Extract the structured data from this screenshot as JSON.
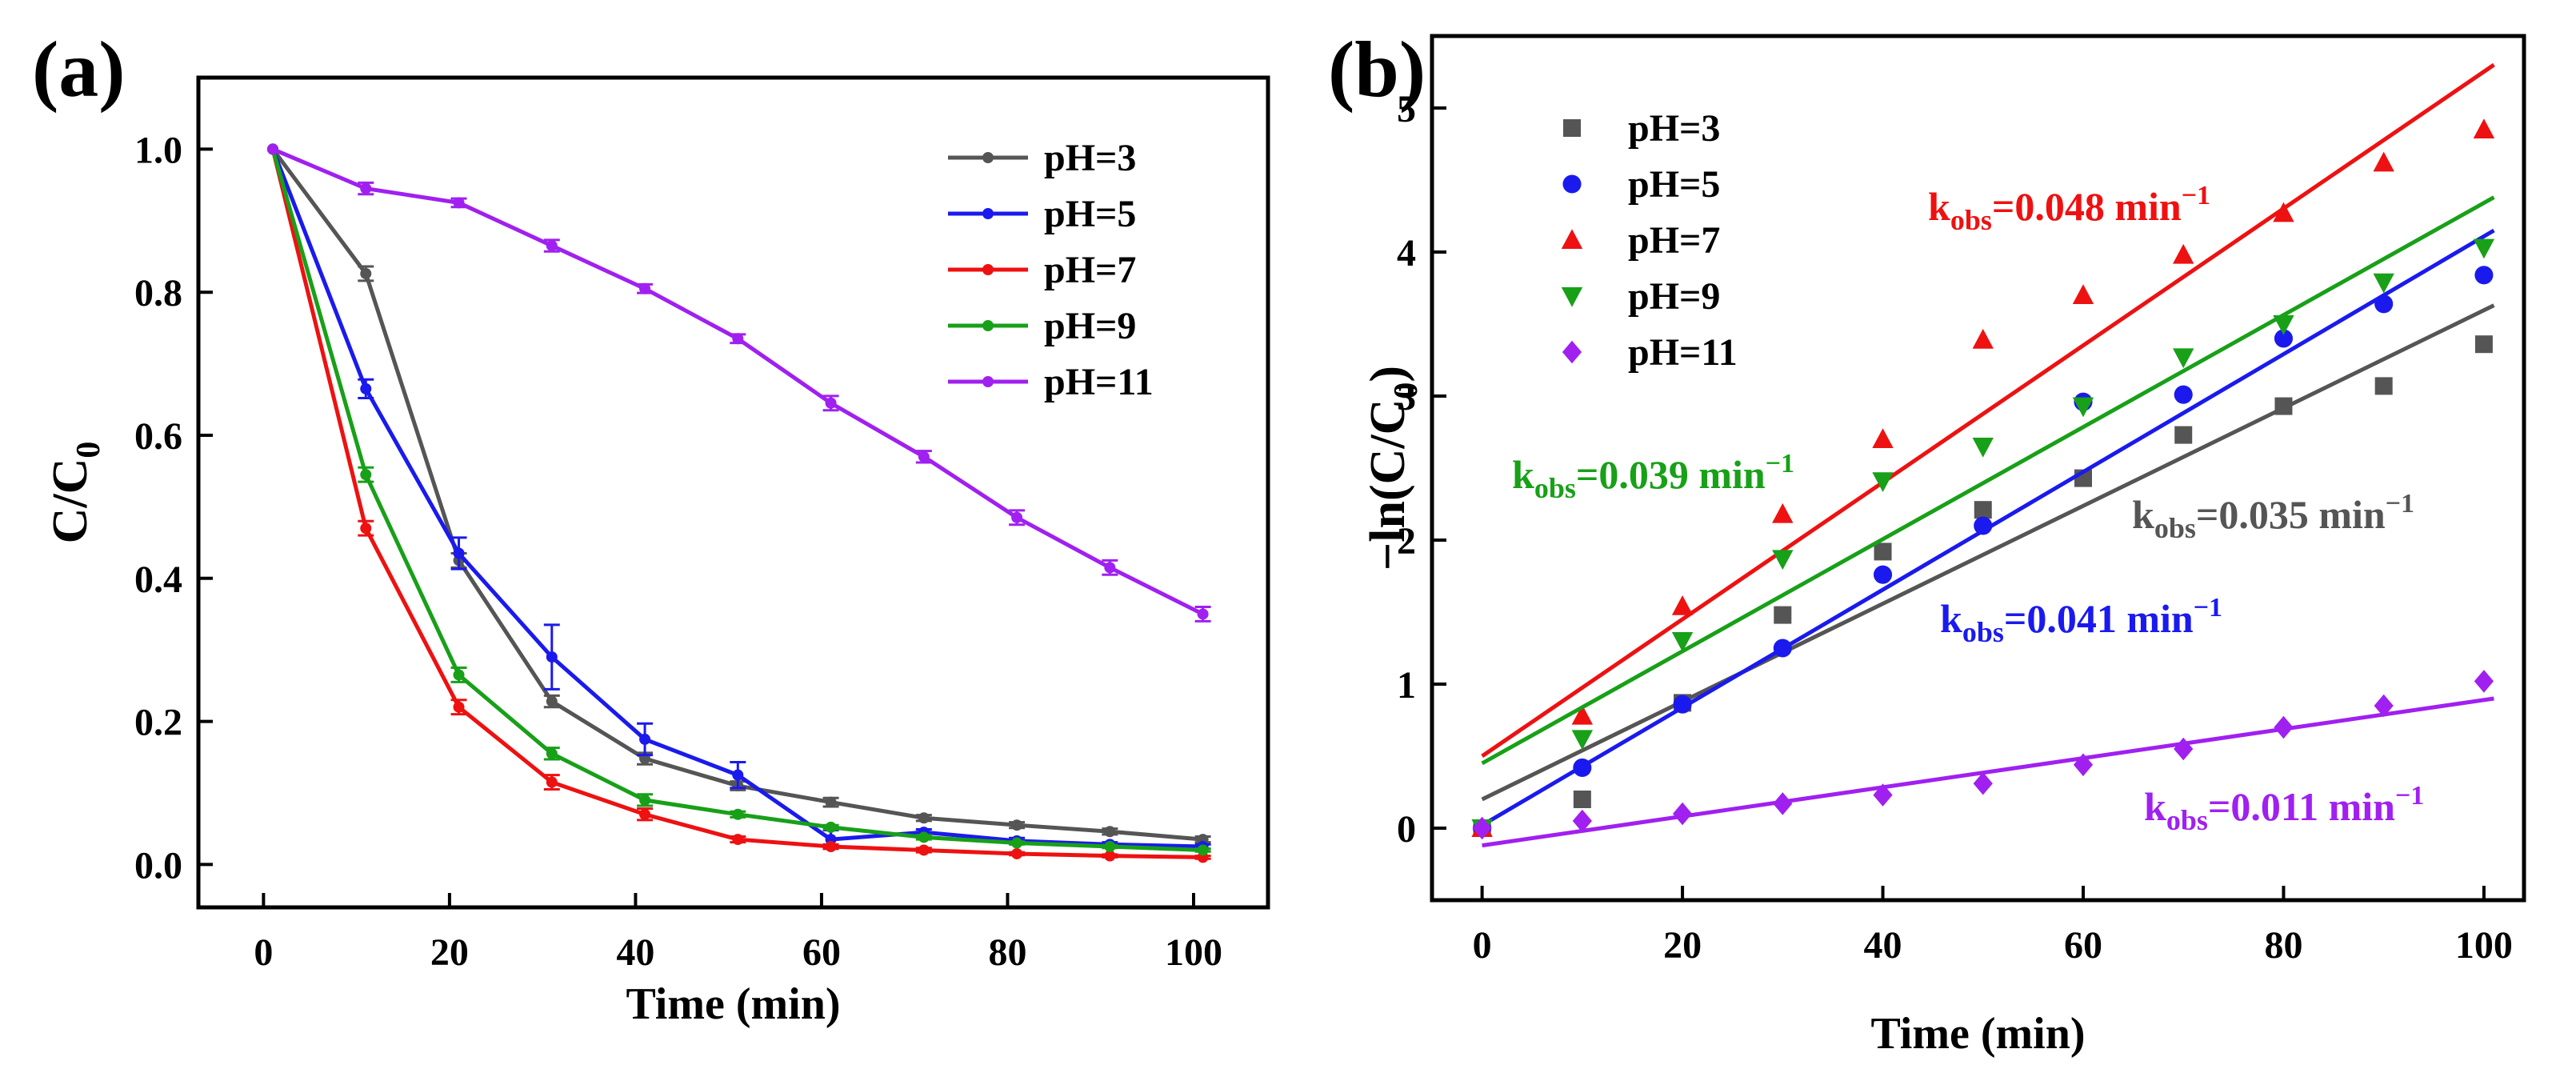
{
  "panels": {
    "a": {
      "label": "(a)"
    },
    "b": {
      "label": "(b)"
    }
  },
  "chart_data": [
    {
      "id": "a",
      "type": "line",
      "title": "",
      "xlabel": "Time (min)",
      "ylabel": "C/C",
      "ylabel_sub": "0",
      "xlim": [
        -7,
        108
      ],
      "ylim": [
        -0.06,
        1.1
      ],
      "xticks": [
        0,
        20,
        40,
        60,
        80,
        100
      ],
      "xtick_labels": [
        "0",
        "20",
        "40",
        "60",
        "80",
        "100"
      ],
      "yticks": [
        0.0,
        0.2,
        0.4,
        0.6,
        0.8,
        1.0
      ],
      "ytick_labels": [
        "0.0",
        "0.2",
        "0.4",
        "0.6",
        "0.8",
        "1.0"
      ],
      "legend_position": "top-right",
      "series": [
        {
          "name": "pH=3",
          "color": "#555555",
          "x": [
            1,
            11,
            21,
            31,
            41,
            51,
            61,
            71,
            81,
            91,
            101
          ],
          "values": [
            1.0,
            0.826,
            0.425,
            0.228,
            0.148,
            0.11,
            0.087,
            0.065,
            0.055,
            0.046,
            0.035
          ],
          "errors": [
            0,
            0.01,
            0.01,
            0.008,
            0.008,
            0.006,
            0.006,
            0.004,
            0.004,
            0.004,
            0.004
          ]
        },
        {
          "name": "pH=5",
          "color": "#1a1aee",
          "x": [
            1,
            11,
            21,
            31,
            41,
            51,
            61,
            71,
            81,
            91,
            101
          ],
          "values": [
            1.0,
            0.665,
            0.435,
            0.29,
            0.175,
            0.125,
            0.035,
            0.045,
            0.033,
            0.028,
            0.025
          ],
          "errors": [
            0,
            0.013,
            0.022,
            0.045,
            0.022,
            0.018,
            0.013,
            0.004,
            0.004,
            0.003,
            0.003
          ]
        },
        {
          "name": "pH=7",
          "color": "#ee1111",
          "x": [
            1,
            11,
            21,
            31,
            41,
            51,
            61,
            71,
            81,
            91,
            101
          ],
          "values": [
            1.0,
            0.47,
            0.22,
            0.115,
            0.07,
            0.035,
            0.025,
            0.02,
            0.015,
            0.012,
            0.01
          ],
          "errors": [
            0,
            0.01,
            0.01,
            0.01,
            0.008,
            0.004,
            0.003,
            0.003,
            0.002,
            0.002,
            0.002
          ]
        },
        {
          "name": "pH=9",
          "color": "#18a018",
          "x": [
            1,
            11,
            21,
            31,
            41,
            51,
            61,
            71,
            81,
            91,
            101
          ],
          "values": [
            1.0,
            0.545,
            0.265,
            0.155,
            0.09,
            0.07,
            0.052,
            0.038,
            0.03,
            0.025,
            0.02
          ],
          "errors": [
            0,
            0.01,
            0.01,
            0.008,
            0.008,
            0.004,
            0.003,
            0.003,
            0.002,
            0.002,
            0.002
          ]
        },
        {
          "name": "pH=11",
          "color": "#a020f0",
          "x": [
            1,
            11,
            21,
            31,
            41,
            51,
            61,
            71,
            81,
            91,
            101
          ],
          "values": [
            1.0,
            0.945,
            0.925,
            0.865,
            0.805,
            0.735,
            0.645,
            0.57,
            0.485,
            0.415,
            0.35
          ],
          "errors": [
            0,
            0.008,
            0.006,
            0.008,
            0.006,
            0.006,
            0.01,
            0.008,
            0.01,
            0.01,
            0.01
          ]
        }
      ]
    },
    {
      "id": "b",
      "type": "scatter",
      "title": "",
      "xlabel": "Time (min)",
      "ylabel": "−ln(C/C",
      "ylabel_sub": "0",
      "ylabel_end": ")",
      "xlim": [
        -5,
        104
      ],
      "ylim": [
        -0.5,
        5.5
      ],
      "xticks": [
        0,
        20,
        40,
        60,
        80,
        100
      ],
      "xtick_labels": [
        "0",
        "20",
        "40",
        "60",
        "80",
        "100"
      ],
      "yticks": [
        0,
        1,
        2,
        3,
        4,
        5
      ],
      "ytick_labels": [
        "0",
        "1",
        "2",
        "3",
        "4",
        "5"
      ],
      "legend_position": "top-left",
      "series": [
        {
          "name": "pH=3",
          "color": "#555555",
          "marker": "square",
          "x": [
            0,
            10,
            20,
            30,
            40,
            50,
            60,
            70,
            80,
            90,
            100
          ],
          "values": [
            0.0,
            0.2,
            0.87,
            1.48,
            1.92,
            2.21,
            2.43,
            2.73,
            2.93,
            3.07,
            3.36
          ],
          "fit": {
            "x": [
              0,
              101
            ],
            "y": [
              0.2,
              3.63
            ]
          },
          "k_label": {
            "k": "k",
            "sub": "obs",
            "value": "=0.035 min",
            "sup": "−1"
          }
        },
        {
          "name": "pH=5",
          "color": "#1a1aee",
          "marker": "circle",
          "x": [
            0,
            10,
            20,
            30,
            40,
            50,
            60,
            70,
            80,
            90,
            100
          ],
          "values": [
            0.0,
            0.42,
            0.86,
            1.25,
            1.76,
            2.1,
            2.96,
            3.01,
            3.4,
            3.64,
            3.84
          ],
          "fit": {
            "x": [
              0,
              101
            ],
            "y": [
              0.02,
              4.15
            ]
          },
          "k_label": {
            "k": "k",
            "sub": "obs",
            "value": "=0.041 min",
            "sup": "−1"
          }
        },
        {
          "name": "pH=7",
          "color": "#ee1111",
          "marker": "triangle-up",
          "x": [
            0,
            10,
            20,
            30,
            40,
            50,
            60,
            70,
            80,
            90,
            100
          ],
          "values": [
            0.0,
            0.78,
            1.54,
            2.18,
            2.7,
            3.39,
            3.7,
            3.98,
            4.27,
            4.62,
            4.85
          ],
          "fit": {
            "x": [
              0,
              101
            ],
            "y": [
              0.5,
              5.3
            ]
          },
          "k_label": {
            "k": "k",
            "sub": "obs",
            "value": "=0.048 min",
            "sup": "−1"
          }
        },
        {
          "name": "pH=9",
          "color": "#18a018",
          "marker": "triangle-down",
          "x": [
            0,
            10,
            20,
            30,
            40,
            50,
            60,
            70,
            80,
            90,
            100
          ],
          "values": [
            0.0,
            0.62,
            1.3,
            1.87,
            2.41,
            2.65,
            2.93,
            3.27,
            3.5,
            3.79,
            4.03
          ],
          "fit": {
            "x": [
              0,
              101
            ],
            "y": [
              0.45,
              4.38
            ]
          },
          "k_label": {
            "k": "k",
            "sub": "obs",
            "value": "=0.039 min",
            "sup": "−1"
          }
        },
        {
          "name": "pH=11",
          "color": "#a020f0",
          "marker": "diamond",
          "x": [
            0,
            10,
            20,
            30,
            40,
            50,
            60,
            70,
            80,
            90,
            100
          ],
          "values": [
            0.0,
            0.05,
            0.1,
            0.17,
            0.23,
            0.31,
            0.44,
            0.55,
            0.7,
            0.85,
            1.02
          ],
          "fit": {
            "x": [
              0,
              101
            ],
            "y": [
              -0.12,
              0.9
            ]
          },
          "k_label": {
            "k": "k",
            "sub": "obs",
            "value": "=0.011 min",
            "sup": "−1"
          }
        }
      ]
    }
  ]
}
